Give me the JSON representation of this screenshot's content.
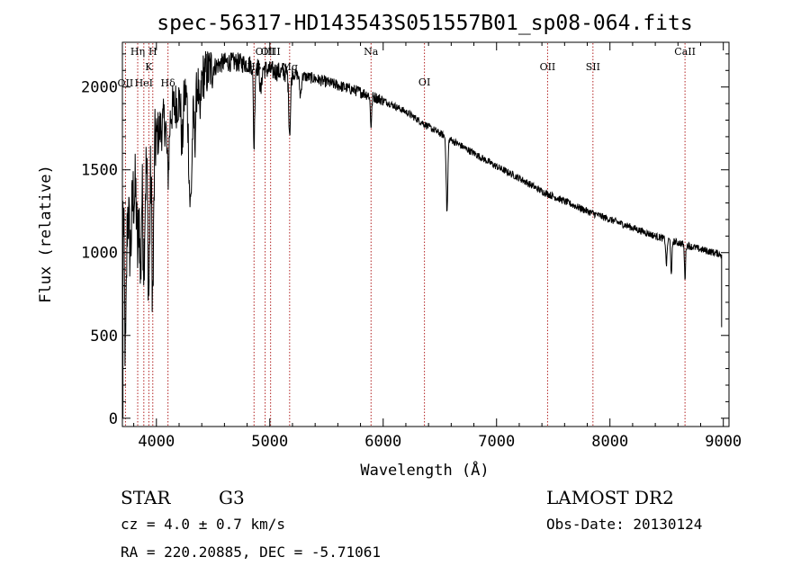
{
  "chart_data": {
    "type": "line",
    "title": "spec-56317-HD143543S051557B01_sp08-064.fits",
    "xlabel": "Wavelength (Å)",
    "ylabel": "Flux (relative)",
    "xlim": [
      3700,
      9050
    ],
    "ylim": [
      -50,
      2270
    ],
    "xticks": [
      4000,
      5000,
      6000,
      7000,
      8000,
      9000
    ],
    "yticks": [
      0,
      500,
      1000,
      1500,
      2000
    ],
    "line_color": "#000000",
    "marker_color": "#b22222",
    "spectral_lines": [
      {
        "label": "Hη",
        "wavelength": 3835,
        "level": 1
      },
      {
        "label": "H",
        "wavelength": 3968,
        "level": 1
      },
      {
        "label": "K",
        "wavelength": 3933,
        "level": 2
      },
      {
        "label": "OII",
        "wavelength": 3727,
        "level": 3
      },
      {
        "label": "HeI",
        "wavelength": 3889,
        "level": 3
      },
      {
        "label": "Hδ",
        "wavelength": 4102,
        "level": 3
      },
      {
        "label": "OIII",
        "wavelength": 4959,
        "level": 1
      },
      {
        "label": "OIII",
        "wavelength": 5007,
        "level": 1
      },
      {
        "label": "Hβ",
        "wavelength": 4861,
        "level": 2
      },
      {
        "label": "Mg",
        "wavelength": 5175,
        "level": 2
      },
      {
        "label": "Na",
        "wavelength": 5893,
        "level": 1
      },
      {
        "label": "OI",
        "wavelength": 6364,
        "level": 4
      },
      {
        "label": "OII",
        "wavelength": 7450,
        "level": 2
      },
      {
        "label": "SII",
        "wavelength": 7850,
        "level": 2
      },
      {
        "label": "CaII",
        "wavelength": 8662,
        "level": 1
      }
    ],
    "continuum": [
      [
        3700,
        1250
      ],
      [
        3800,
        1350
      ],
      [
        3900,
        1500
      ],
      [
        4000,
        1700
      ],
      [
        4100,
        1830
      ],
      [
        4200,
        1920
      ],
      [
        4300,
        1990
      ],
      [
        4400,
        2060
      ],
      [
        4500,
        2120
      ],
      [
        4600,
        2150
      ],
      [
        4700,
        2150
      ],
      [
        4800,
        2140
      ],
      [
        4900,
        2120
      ],
      [
        5000,
        2100
      ],
      [
        5200,
        2080
      ],
      [
        5400,
        2050
      ],
      [
        5600,
        2010
      ],
      [
        5800,
        1970
      ],
      [
        6000,
        1920
      ],
      [
        6200,
        1850
      ],
      [
        6400,
        1760
      ],
      [
        6600,
        1680
      ],
      [
        6800,
        1600
      ],
      [
        7000,
        1520
      ],
      [
        7200,
        1450
      ],
      [
        7400,
        1370
      ],
      [
        7600,
        1310
      ],
      [
        7800,
        1250
      ],
      [
        8000,
        1200
      ],
      [
        8200,
        1150
      ],
      [
        8400,
        1100
      ],
      [
        8600,
        1060
      ],
      [
        8800,
        1020
      ],
      [
        8980,
        990
      ]
    ],
    "absorption_features": [
      {
        "center": 3727,
        "depth": 900,
        "width": 8
      },
      {
        "center": 3770,
        "depth": 300,
        "width": 10
      },
      {
        "center": 3835,
        "depth": 400,
        "width": 8
      },
      {
        "center": 3860,
        "depth": 600,
        "width": 6
      },
      {
        "center": 3889,
        "depth": 500,
        "width": 8
      },
      {
        "center": 3933,
        "depth": 800,
        "width": 8
      },
      {
        "center": 3968,
        "depth": 900,
        "width": 8
      },
      {
        "center": 4102,
        "depth": 350,
        "width": 10
      },
      {
        "center": 4227,
        "depth": 300,
        "width": 8
      },
      {
        "center": 4300,
        "depth": 700,
        "width": 14
      },
      {
        "center": 4340,
        "depth": 300,
        "width": 8
      },
      {
        "center": 4383,
        "depth": 250,
        "width": 8
      },
      {
        "center": 4861,
        "depth": 500,
        "width": 6
      },
      {
        "center": 4920,
        "depth": 150,
        "width": 8
      },
      {
        "center": 5175,
        "depth": 350,
        "width": 8
      },
      {
        "center": 5270,
        "depth": 120,
        "width": 8
      },
      {
        "center": 5893,
        "depth": 180,
        "width": 6
      },
      {
        "center": 6563,
        "depth": 450,
        "width": 7
      },
      {
        "center": 8498,
        "depth": 150,
        "width": 6
      },
      {
        "center": 8542,
        "depth": 220,
        "width": 5
      },
      {
        "center": 8662,
        "depth": 200,
        "width": 5
      }
    ],
    "sample_step": 3,
    "noise_amplitude": [
      {
        "until": 4000,
        "amp": 250
      },
      {
        "until": 4500,
        "amp": 150
      },
      {
        "until": 5200,
        "amp": 60
      },
      {
        "until": 6000,
        "amp": 35
      },
      {
        "until": 9000,
        "amp": 22
      }
    ]
  },
  "info": {
    "class_label": "STAR",
    "subclass": "G3",
    "survey": "LAMOST DR2",
    "redshift_text": "cz = 4.0 ± 0.7 km/s",
    "obs_date_text": "Obs-Date: 20130124",
    "coords_text": "RA = 220.20885, DEC =  -5.71061"
  }
}
